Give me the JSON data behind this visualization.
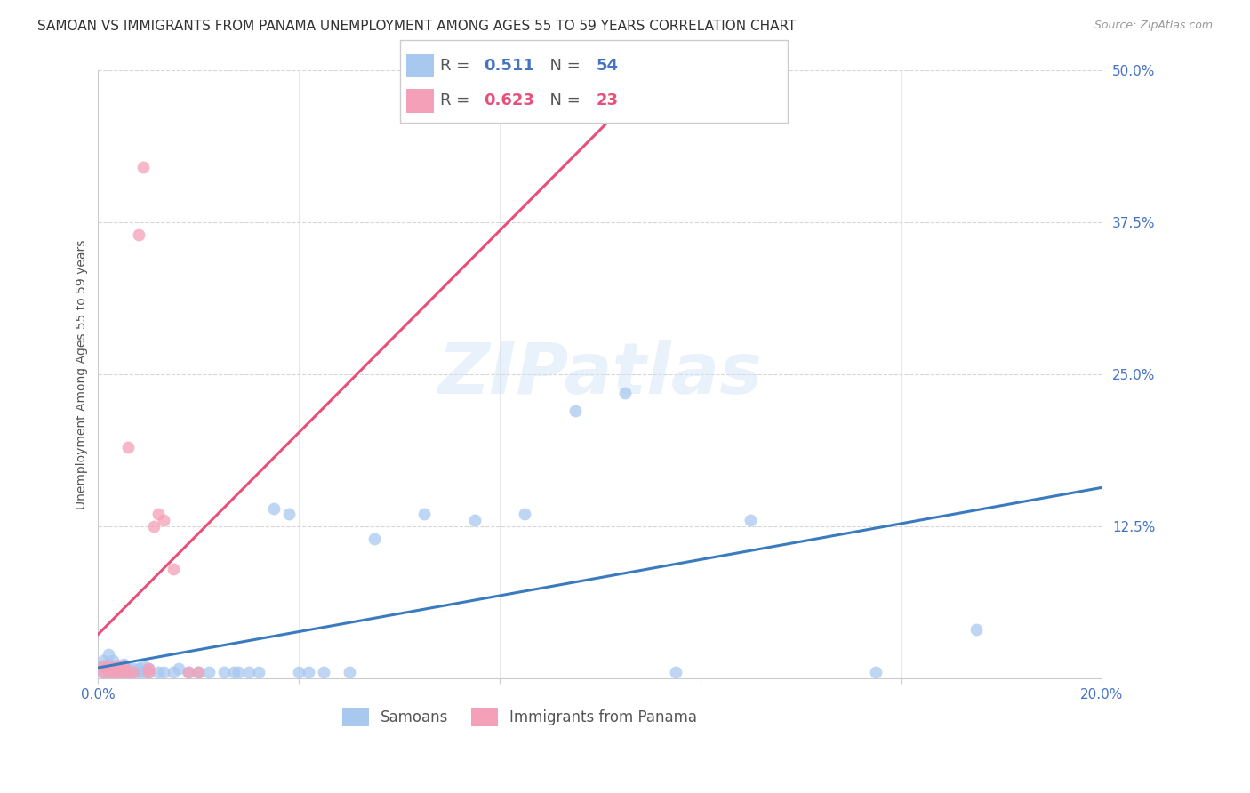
{
  "title": "SAMOAN VS IMMIGRANTS FROM PANAMA UNEMPLOYMENT AMONG AGES 55 TO 59 YEARS CORRELATION CHART",
  "source": "Source: ZipAtlas.com",
  "ylabel": "Unemployment Among Ages 55 to 59 years",
  "xlim": [
    0.0,
    0.2
  ],
  "ylim": [
    0.0,
    0.5
  ],
  "watermark": "ZIPatlas",
  "legend_R1_val": "0.511",
  "legend_N1_val": "54",
  "legend_R2_val": "0.623",
  "legend_N2_val": "23",
  "label1": "Samoans",
  "label2": "Immigrants from Panama",
  "color1": "#a8c8f0",
  "color2": "#f4a0b8",
  "line_color1": "#3a7abf",
  "line_color2": "#e8507a",
  "title_fontsize": 11,
  "axis_label_fontsize": 10,
  "tick_fontsize": 11,
  "background_color": "#ffffff",
  "samoans_x": [
    0.001,
    0.001,
    0.001,
    0.002,
    0.002,
    0.002,
    0.002,
    0.003,
    0.003,
    0.003,
    0.003,
    0.004,
    0.004,
    0.005,
    0.005,
    0.005,
    0.006,
    0.006,
    0.007,
    0.007,
    0.008,
    0.008,
    0.009,
    0.009,
    0.01,
    0.01,
    0.012,
    0.013,
    0.015,
    0.016,
    0.018,
    0.02,
    0.022,
    0.025,
    0.027,
    0.028,
    0.03,
    0.032,
    0.035,
    0.038,
    0.04,
    0.042,
    0.045,
    0.05,
    0.055,
    0.065,
    0.075,
    0.085,
    0.095,
    0.105,
    0.115,
    0.13,
    0.155,
    0.175
  ],
  "samoans_y": [
    0.005,
    0.01,
    0.015,
    0.005,
    0.008,
    0.012,
    0.02,
    0.005,
    0.008,
    0.01,
    0.015,
    0.005,
    0.01,
    0.005,
    0.008,
    0.012,
    0.005,
    0.008,
    0.005,
    0.008,
    0.005,
    0.008,
    0.005,
    0.01,
    0.005,
    0.008,
    0.005,
    0.005,
    0.005,
    0.008,
    0.005,
    0.005,
    0.005,
    0.005,
    0.005,
    0.005,
    0.005,
    0.005,
    0.14,
    0.135,
    0.005,
    0.005,
    0.005,
    0.005,
    0.115,
    0.135,
    0.13,
    0.135,
    0.22,
    0.235,
    0.005,
    0.13,
    0.005,
    0.04
  ],
  "panama_x": [
    0.001,
    0.001,
    0.002,
    0.002,
    0.003,
    0.003,
    0.004,
    0.004,
    0.005,
    0.005,
    0.006,
    0.006,
    0.007,
    0.008,
    0.009,
    0.01,
    0.01,
    0.011,
    0.012,
    0.013,
    0.015,
    0.018,
    0.02
  ],
  "panama_y": [
    0.005,
    0.01,
    0.005,
    0.01,
    0.005,
    0.008,
    0.005,
    0.01,
    0.005,
    0.01,
    0.005,
    0.19,
    0.005,
    0.365,
    0.42,
    0.005,
    0.008,
    0.125,
    0.135,
    0.13,
    0.09,
    0.005,
    0.005
  ]
}
